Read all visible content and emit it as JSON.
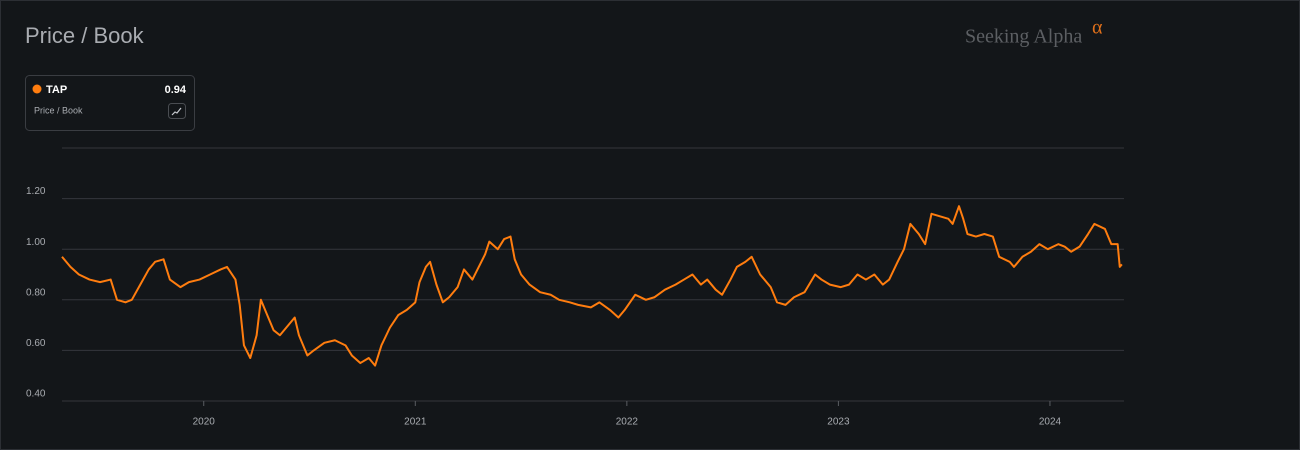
{
  "chart_data": {
    "type": "line",
    "title": "Price / Book",
    "watermark": "Seeking Alpha",
    "watermark_symbol": "α",
    "x": [
      2019.33,
      2019.37,
      2019.41,
      2019.46,
      2019.51,
      2019.56,
      2019.59,
      2019.63,
      2019.66,
      2019.7,
      2019.74,
      2019.77,
      2019.81,
      2019.84,
      2019.89,
      2019.93,
      2019.98,
      2020.03,
      2020.08,
      2020.11,
      2020.15,
      2020.17,
      2020.19,
      2020.22,
      2020.25,
      2020.27,
      2020.3,
      2020.33,
      2020.36,
      2020.4,
      2020.43,
      2020.45,
      2020.49,
      2020.52,
      2020.57,
      2020.62,
      2020.67,
      2020.7,
      2020.74,
      2020.78,
      2020.81,
      2020.84,
      2020.88,
      2020.92,
      2020.96,
      2021.0,
      2021.02,
      2021.05,
      2021.07,
      2021.1,
      2021.13,
      2021.16,
      2021.2,
      2021.23,
      2021.27,
      2021.3,
      2021.33,
      2021.35,
      2021.39,
      2021.42,
      2021.45,
      2021.47,
      2021.5,
      2021.54,
      2021.59,
      2021.64,
      2021.68,
      2021.73,
      2021.77,
      2021.83,
      2021.87,
      2021.92,
      2021.96,
      2021.99,
      2022.04,
      2022.09,
      2022.13,
      2022.18,
      2022.23,
      2022.27,
      2022.31,
      2022.35,
      2022.38,
      2022.42,
      2022.45,
      2022.49,
      2022.52,
      2022.56,
      2022.59,
      2022.63,
      2022.68,
      2022.71,
      2022.75,
      2022.79,
      2022.84,
      2022.89,
      2022.92,
      2022.96,
      2023.01,
      2023.05,
      2023.09,
      2023.13,
      2023.17,
      2023.21,
      2023.24,
      2023.28,
      2023.31,
      2023.34,
      2023.38,
      2023.41,
      2023.44,
      2023.48,
      2023.52,
      2023.54,
      2023.57,
      2023.59,
      2023.61,
      2023.65,
      2023.69,
      2023.73,
      2023.76,
      2023.81,
      2023.83,
      2023.87,
      2023.91,
      2023.95,
      2023.99,
      2024.04,
      2024.07,
      2024.1,
      2024.14,
      2024.18,
      2024.21,
      2024.26,
      2024.29,
      2024.32,
      2024.33,
      2024.34
    ],
    "series": [
      {
        "name": "TAP",
        "color": "#ff7d0f",
        "values": [
          0.97,
          0.93,
          0.9,
          0.88,
          0.87,
          0.88,
          0.8,
          0.79,
          0.8,
          0.86,
          0.92,
          0.95,
          0.96,
          0.88,
          0.85,
          0.87,
          0.88,
          0.9,
          0.92,
          0.93,
          0.88,
          0.78,
          0.62,
          0.57,
          0.66,
          0.8,
          0.74,
          0.68,
          0.66,
          0.7,
          0.73,
          0.66,
          0.58,
          0.6,
          0.63,
          0.64,
          0.62,
          0.58,
          0.55,
          0.57,
          0.54,
          0.62,
          0.69,
          0.74,
          0.76,
          0.79,
          0.87,
          0.93,
          0.95,
          0.86,
          0.79,
          0.81,
          0.85,
          0.92,
          0.88,
          0.93,
          0.98,
          1.03,
          1.0,
          1.04,
          1.05,
          0.96,
          0.9,
          0.86,
          0.83,
          0.82,
          0.8,
          0.79,
          0.78,
          0.77,
          0.79,
          0.76,
          0.73,
          0.76,
          0.82,
          0.8,
          0.81,
          0.84,
          0.86,
          0.88,
          0.9,
          0.86,
          0.88,
          0.84,
          0.82,
          0.88,
          0.93,
          0.95,
          0.97,
          0.9,
          0.85,
          0.79,
          0.78,
          0.81,
          0.83,
          0.9,
          0.88,
          0.86,
          0.85,
          0.86,
          0.9,
          0.88,
          0.9,
          0.86,
          0.88,
          0.95,
          1.0,
          1.1,
          1.06,
          1.02,
          1.14,
          1.13,
          1.12,
          1.1,
          1.17,
          1.12,
          1.06,
          1.05,
          1.06,
          1.05,
          0.97,
          0.95,
          0.93,
          0.97,
          0.99,
          1.02,
          1.0,
          1.02,
          1.01,
          0.99,
          1.01,
          1.06,
          1.1,
          1.08,
          1.02,
          1.02,
          0.93,
          0.94
        ]
      }
    ],
    "xlim": [
      2019.33,
      2024.35
    ],
    "xticks": [
      2020,
      2021,
      2022,
      2023,
      2024
    ],
    "ylim": [
      0.4,
      1.4
    ],
    "yticks": [
      {
        "value": 0.4,
        "label": "0.40"
      },
      {
        "value": 0.6,
        "label": "0.60"
      },
      {
        "value": 0.8,
        "label": "0.80"
      },
      {
        "value": 1.0,
        "label": "1.00"
      },
      {
        "value": 1.2,
        "label": "1.20"
      }
    ],
    "grid": true
  }
}
